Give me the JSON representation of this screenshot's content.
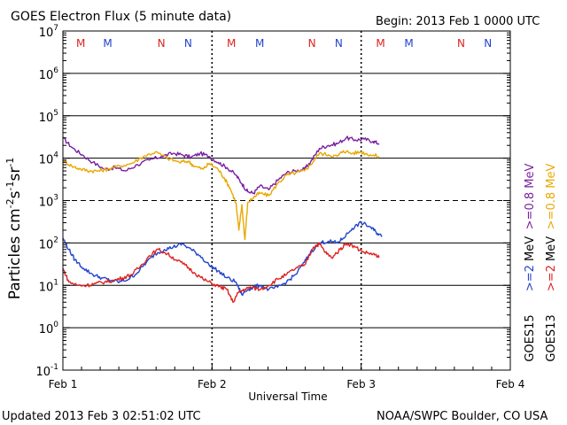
{
  "header": {
    "title": "GOES Electron Flux (5 minute data)",
    "begin": "Begin: 2013 Feb 1 0000 UTC"
  },
  "footer": {
    "updated": "Updated 2013 Feb  3 02:51:02 UTC",
    "credit": "NOAA/SWPC Boulder, CO USA"
  },
  "chart_data": {
    "type": "line",
    "title": "GOES Electron Flux (5 minute data)",
    "xlabel": "Universal Time",
    "ylabel": "Particles cm-2s-1sr-1",
    "ylabel_parts": [
      "Particles cm",
      "-2",
      "s",
      "-1",
      "sr",
      "-1"
    ],
    "x_unit": "days since 2013 Feb 1 00:00 UTC",
    "xlim": [
      0,
      3
    ],
    "x_ticks": [
      {
        "x": 0,
        "label": "Feb 1"
      },
      {
        "x": 1,
        "label": "Feb 2"
      },
      {
        "x": 2,
        "label": "Feb 3"
      },
      {
        "x": 3,
        "label": "Feb 4"
      }
    ],
    "y_scale": "log",
    "ylim_exponents": [
      -1,
      7
    ],
    "y_ticks": [
      {
        "exp": -1,
        "base": "10",
        "sup": "-1"
      },
      {
        "exp": 0,
        "base": "10",
        "sup": "0"
      },
      {
        "exp": 1,
        "base": "10",
        "sup": "1"
      },
      {
        "exp": 2,
        "base": "10",
        "sup": "2"
      },
      {
        "exp": 3,
        "base": "10",
        "sup": "3"
      },
      {
        "exp": 4,
        "base": "10",
        "sup": "4"
      },
      {
        "exp": 5,
        "base": "10",
        "sup": "5"
      },
      {
        "exp": 6,
        "base": "10",
        "sup": "6"
      },
      {
        "exp": 7,
        "base": "10",
        "sup": "7"
      }
    ],
    "threshold_exponent": 3,
    "grid": "horizontal at each decade",
    "markers": [
      {
        "x": 0.12,
        "label": "M",
        "color": "#dd2222"
      },
      {
        "x": 0.3,
        "label": "M",
        "color": "#2244cc"
      },
      {
        "x": 0.66,
        "label": "N",
        "color": "#dd2222"
      },
      {
        "x": 0.84,
        "label": "N",
        "color": "#2244cc"
      },
      {
        "x": 1.13,
        "label": "M",
        "color": "#dd2222"
      },
      {
        "x": 1.32,
        "label": "M",
        "color": "#2244cc"
      },
      {
        "x": 1.67,
        "label": "N",
        "color": "#dd2222"
      },
      {
        "x": 1.85,
        "label": "N",
        "color": "#2244cc"
      },
      {
        "x": 2.13,
        "label": "M",
        "color": "#dd2222"
      },
      {
        "x": 2.32,
        "label": "M",
        "color": "#2244cc"
      },
      {
        "x": 2.67,
        "label": "N",
        "color": "#dd2222"
      },
      {
        "x": 2.85,
        "label": "N",
        "color": "#2244cc"
      }
    ],
    "legend": [
      {
        "column": "GOES15",
        "items": [
          {
            "text": ">=0.8 MeV",
            "color": "#7a1fa2"
          },
          {
            "text": ">=2 MeV",
            "color": "#2244cc"
          }
        ]
      },
      {
        "column": "GOES13",
        "items": [
          {
            "text": ">=0.8 MeV",
            "color": "#e8a800"
          },
          {
            "text": ">=2 MeV",
            "color": "#dd2222"
          }
        ]
      }
    ],
    "legend_texts": {
      "goes15_purple": ">=0.8 MeV",
      "goes13_orange": ">=0.8 MeV",
      "goes15_blue": ">=2",
      "goes13_red": ">=2",
      "goes15": "GOES15",
      "goes13": "GOES13"
    },
    "series": [
      {
        "name": "GOES15 >=0.8 MeV",
        "color": "#7a1fa2",
        "points": [
          [
            0.0,
            30000
          ],
          [
            0.06,
            18000
          ],
          [
            0.13,
            12000
          ],
          [
            0.2,
            8000
          ],
          [
            0.28,
            5500
          ],
          [
            0.35,
            6000
          ],
          [
            0.42,
            5000
          ],
          [
            0.5,
            7000
          ],
          [
            0.58,
            9000
          ],
          [
            0.66,
            11000
          ],
          [
            0.74,
            13000
          ],
          [
            0.8,
            12000
          ],
          [
            0.86,
            10500
          ],
          [
            0.92,
            13000
          ],
          [
            0.98,
            11000
          ],
          [
            1.04,
            8000
          ],
          [
            1.1,
            6000
          ],
          [
            1.16,
            4000
          ],
          [
            1.2,
            2500
          ],
          [
            1.24,
            1600
          ],
          [
            1.28,
            1500
          ],
          [
            1.32,
            2200
          ],
          [
            1.38,
            1800
          ],
          [
            1.44,
            3000
          ],
          [
            1.5,
            4500
          ],
          [
            1.56,
            5000
          ],
          [
            1.62,
            5500
          ],
          [
            1.66,
            8000
          ],
          [
            1.72,
            17000
          ],
          [
            1.78,
            20000
          ],
          [
            1.84,
            22000
          ],
          [
            1.9,
            30000
          ],
          [
            1.96,
            27000
          ],
          [
            2.02,
            28000
          ],
          [
            2.08,
            25000
          ],
          [
            2.12,
            22000
          ]
        ]
      },
      {
        "name": "GOES13 >=0.8 MeV",
        "color": "#e8a800",
        "points": [
          [
            0.0,
            9000
          ],
          [
            0.06,
            6500
          ],
          [
            0.12,
            5500
          ],
          [
            0.18,
            5000
          ],
          [
            0.24,
            5000
          ],
          [
            0.3,
            5500
          ],
          [
            0.38,
            6500
          ],
          [
            0.46,
            7500
          ],
          [
            0.54,
            11000
          ],
          [
            0.62,
            14000
          ],
          [
            0.7,
            10000
          ],
          [
            0.78,
            8000
          ],
          [
            0.84,
            8500
          ],
          [
            0.88,
            6500
          ],
          [
            0.94,
            5500
          ],
          [
            0.98,
            7500
          ],
          [
            1.04,
            5500
          ],
          [
            1.08,
            3500
          ],
          [
            1.12,
            2000
          ],
          [
            1.16,
            900
          ],
          [
            1.18,
            200
          ],
          [
            1.2,
            800
          ],
          [
            1.22,
            120
          ],
          [
            1.24,
            900
          ],
          [
            1.28,
            1200
          ],
          [
            1.32,
            1500
          ],
          [
            1.38,
            1300
          ],
          [
            1.44,
            2500
          ],
          [
            1.5,
            4000
          ],
          [
            1.56,
            4500
          ],
          [
            1.62,
            5000
          ],
          [
            1.66,
            7000
          ],
          [
            1.72,
            13000
          ],
          [
            1.78,
            12000
          ],
          [
            1.84,
            11000
          ],
          [
            1.88,
            15000
          ],
          [
            1.94,
            13000
          ],
          [
            2.0,
            14000
          ],
          [
            2.06,
            12000
          ],
          [
            2.12,
            11000
          ]
        ]
      },
      {
        "name": "GOES15 >=2 MeV",
        "color": "#2244cc",
        "points": [
          [
            0.0,
            130
          ],
          [
            0.04,
            70
          ],
          [
            0.08,
            40
          ],
          [
            0.14,
            25
          ],
          [
            0.2,
            18
          ],
          [
            0.26,
            15
          ],
          [
            0.32,
            13
          ],
          [
            0.38,
            12
          ],
          [
            0.44,
            14
          ],
          [
            0.5,
            20
          ],
          [
            0.56,
            35
          ],
          [
            0.62,
            55
          ],
          [
            0.68,
            70
          ],
          [
            0.74,
            80
          ],
          [
            0.8,
            95
          ],
          [
            0.86,
            70
          ],
          [
            0.92,
            50
          ],
          [
            0.98,
            30
          ],
          [
            1.04,
            22
          ],
          [
            1.1,
            15
          ],
          [
            1.16,
            12
          ],
          [
            1.2,
            6
          ],
          [
            1.24,
            8
          ],
          [
            1.28,
            9
          ],
          [
            1.32,
            10
          ],
          [
            1.38,
            8
          ],
          [
            1.44,
            9
          ],
          [
            1.5,
            12
          ],
          [
            1.56,
            18
          ],
          [
            1.62,
            35
          ],
          [
            1.66,
            60
          ],
          [
            1.72,
            100
          ],
          [
            1.78,
            110
          ],
          [
            1.84,
            100
          ],
          [
            1.88,
            130
          ],
          [
            1.94,
            220
          ],
          [
            2.0,
            300
          ],
          [
            2.06,
            240
          ],
          [
            2.1,
            180
          ],
          [
            2.14,
            140
          ]
        ]
      },
      {
        "name": "GOES13 >=2 MeV",
        "color": "#dd2222",
        "points": [
          [
            0.0,
            25
          ],
          [
            0.04,
            12
          ],
          [
            0.1,
            10
          ],
          [
            0.16,
            10
          ],
          [
            0.22,
            11
          ],
          [
            0.28,
            12
          ],
          [
            0.34,
            13
          ],
          [
            0.4,
            15
          ],
          [
            0.46,
            18
          ],
          [
            0.52,
            28
          ],
          [
            0.58,
            50
          ],
          [
            0.64,
            70
          ],
          [
            0.7,
            55
          ],
          [
            0.76,
            40
          ],
          [
            0.82,
            30
          ],
          [
            0.88,
            20
          ],
          [
            0.94,
            14
          ],
          [
            1.0,
            11
          ],
          [
            1.06,
            9
          ],
          [
            1.1,
            8
          ],
          [
            1.14,
            4
          ],
          [
            1.18,
            7
          ],
          [
            1.22,
            8
          ],
          [
            1.26,
            9
          ],
          [
            1.32,
            8
          ],
          [
            1.38,
            10
          ],
          [
            1.44,
            14
          ],
          [
            1.5,
            18
          ],
          [
            1.56,
            25
          ],
          [
            1.62,
            30
          ],
          [
            1.68,
            80
          ],
          [
            1.72,
            95
          ],
          [
            1.76,
            60
          ],
          [
            1.8,
            45
          ],
          [
            1.86,
            70
          ],
          [
            1.9,
            100
          ],
          [
            1.96,
            80
          ],
          [
            2.02,
            60
          ],
          [
            2.08,
            55
          ],
          [
            2.12,
            45
          ]
        ]
      }
    ]
  }
}
